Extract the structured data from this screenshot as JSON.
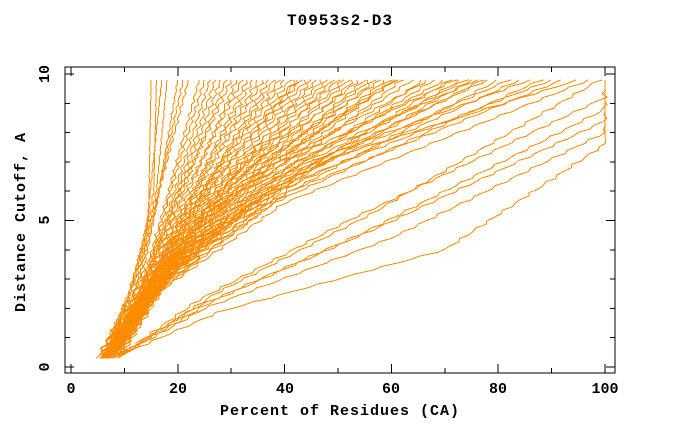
{
  "title": "T0953s2-D3",
  "chart_data": {
    "type": "line",
    "title": "T0953s2-D3",
    "xlabel": "Percent of Residues (CA)",
    "ylabel": "Distance Cutoff, A",
    "xlim": [
      0,
      100
    ],
    "ylim": [
      0,
      10
    ],
    "x_major_ticks": [
      0,
      20,
      40,
      60,
      80,
      100
    ],
    "x_minor_ticks": [
      10,
      30,
      50,
      70,
      90
    ],
    "y_major_ticks": [
      0,
      5,
      10
    ],
    "y_minor_ticks": [
      1,
      2,
      3,
      4,
      6,
      7,
      8,
      9
    ],
    "grid": false,
    "legend": "none",
    "line_color": "#ff8c00",
    "axis_color": "#000000",
    "background": "#ffffff",
    "curves_max_cutoff": 9.8,
    "series": [
      [
        [
          5.5,
          0.3
        ],
        [
          11,
          2.5
        ],
        [
          14.5,
          5
        ],
        [
          15,
          9.8
        ]
      ],
      [
        [
          6,
          0.3
        ],
        [
          12,
          3
        ],
        [
          15.5,
          6
        ],
        [
          16,
          9.8
        ]
      ],
      [
        [
          5,
          0.3
        ],
        [
          10,
          2
        ],
        [
          14,
          4.5
        ],
        [
          17,
          9.8
        ]
      ],
      [
        [
          6.5,
          0.3
        ],
        [
          13,
          3.5
        ],
        [
          16,
          6
        ],
        [
          18,
          9.8
        ]
      ],
      [
        [
          5.8,
          0.3
        ],
        [
          12.5,
          2.8
        ],
        [
          16,
          5.5
        ],
        [
          20,
          9.8
        ]
      ],
      [
        [
          6.2,
          0.3
        ],
        [
          13.5,
          3.2
        ],
        [
          17,
          6.5
        ],
        [
          21,
          9.8
        ]
      ],
      [
        [
          5.2,
          0.4
        ],
        [
          11.5,
          2.2
        ],
        [
          15,
          5
        ],
        [
          22,
          9.8
        ]
      ],
      [
        [
          6,
          0.3
        ],
        [
          13,
          2.6
        ],
        [
          18,
          5.8
        ],
        [
          24,
          9.8
        ]
      ],
      [
        [
          6.5,
          0.35
        ],
        [
          14,
          3
        ],
        [
          19,
          6.2
        ],
        [
          25,
          9.8
        ]
      ],
      [
        [
          5.6,
          0.3
        ],
        [
          12,
          2.2
        ],
        [
          18,
          5.2
        ],
        [
          26,
          9.8
        ]
      ],
      [
        [
          7,
          0.4
        ],
        [
          15,
          3.4
        ],
        [
          21,
          6.6
        ],
        [
          27,
          9.8
        ]
      ],
      [
        [
          6.1,
          0.3
        ],
        [
          13,
          2.4
        ],
        [
          19.5,
          5.6
        ],
        [
          28,
          9.8
        ]
      ],
      [
        [
          6.8,
          0.35
        ],
        [
          14.5,
          3
        ],
        [
          21,
          6
        ],
        [
          29,
          9.8
        ]
      ],
      [
        [
          5.9,
          0.3
        ],
        [
          12.5,
          2.3
        ],
        [
          19,
          5.4
        ],
        [
          30,
          9.8
        ]
      ],
      [
        [
          7.2,
          0.4
        ],
        [
          15.5,
          3.2
        ],
        [
          23,
          6.4
        ],
        [
          31,
          9.8
        ]
      ],
      [
        [
          6.3,
          0.3
        ],
        [
          13.2,
          2.5
        ],
        [
          21,
          5.8
        ],
        [
          32,
          9.8
        ]
      ],
      [
        [
          6.9,
          0.35
        ],
        [
          15,
          3
        ],
        [
          23.5,
          6.2
        ],
        [
          33,
          9.8
        ]
      ],
      [
        [
          5.7,
          0.3
        ],
        [
          12.8,
          2.2
        ],
        [
          20.5,
          5.2
        ],
        [
          34,
          9.8
        ]
      ],
      [
        [
          7.4,
          0.4
        ],
        [
          16,
          3.3
        ],
        [
          25,
          6.5
        ],
        [
          35,
          9.8
        ]
      ],
      [
        [
          6.4,
          0.3
        ],
        [
          13.8,
          2.5
        ],
        [
          22.5,
          5.7
        ],
        [
          36,
          9.8
        ]
      ],
      [
        [
          7,
          0.35
        ],
        [
          15.2,
          3
        ],
        [
          25,
          6.1
        ],
        [
          37,
          9.8
        ]
      ],
      [
        [
          5.8,
          0.3
        ],
        [
          13,
          2.3
        ],
        [
          22,
          5.3
        ],
        [
          38,
          9.8
        ]
      ],
      [
        [
          7.6,
          0.4
        ],
        [
          16.5,
          3.4
        ],
        [
          27,
          6.6
        ],
        [
          39,
          9.8
        ]
      ],
      [
        [
          6.6,
          0.3
        ],
        [
          14.2,
          2.6
        ],
        [
          24,
          5.8
        ],
        [
          40,
          9.8
        ]
      ],
      [
        [
          7.1,
          0.35
        ],
        [
          15.8,
          3.1
        ],
        [
          26.5,
          6.2
        ],
        [
          41,
          9.8
        ]
      ],
      [
        [
          6,
          0.3
        ],
        [
          13.5,
          2.4
        ],
        [
          23.5,
          5.5
        ],
        [
          42,
          9.8
        ]
      ],
      [
        [
          7.8,
          0.4
        ],
        [
          17,
          3.5
        ],
        [
          28.5,
          6.7
        ],
        [
          42.5,
          9.8
        ]
      ],
      [
        [
          6.2,
          0.3
        ],
        [
          14,
          2.5
        ],
        [
          25,
          5.6
        ],
        [
          43,
          9.8
        ]
      ],
      [
        [
          7,
          0.35
        ],
        [
          15.5,
          3
        ],
        [
          27,
          6
        ],
        [
          44,
          9.8
        ]
      ],
      [
        [
          5.9,
          0.3
        ],
        [
          13.2,
          2.2
        ],
        [
          24.5,
          5.2
        ],
        [
          45,
          9.8
        ]
      ],
      [
        [
          7.5,
          0.4
        ],
        [
          16.8,
          3.3
        ],
        [
          29,
          6.4
        ],
        [
          46,
          9.8
        ]
      ],
      [
        [
          6.5,
          0.3
        ],
        [
          14.5,
          2.6
        ],
        [
          26.5,
          5.7
        ],
        [
          47,
          9.8
        ]
      ],
      [
        [
          7.2,
          0.35
        ],
        [
          16,
          3.1
        ],
        [
          28.5,
          6.1
        ],
        [
          48,
          9.8
        ]
      ],
      [
        [
          6,
          0.3
        ],
        [
          13.8,
          2.3
        ],
        [
          25.5,
          5.3
        ],
        [
          49,
          9.8
        ]
      ],
      [
        [
          7.9,
          0.4
        ],
        [
          17.5,
          3.5
        ],
        [
          31,
          6.6
        ],
        [
          50,
          9.8
        ]
      ],
      [
        [
          6.7,
          0.3
        ],
        [
          15,
          2.7
        ],
        [
          28,
          5.8
        ],
        [
          51,
          9.8
        ]
      ],
      [
        [
          7.3,
          0.35
        ],
        [
          16.4,
          3.1
        ],
        [
          30,
          6.2
        ],
        [
          52,
          9.8
        ]
      ],
      [
        [
          6.1,
          0.3
        ],
        [
          14.2,
          2.4
        ],
        [
          27,
          5.4
        ],
        [
          53,
          9.8
        ]
      ],
      [
        [
          8,
          0.4
        ],
        [
          18,
          3.6
        ],
        [
          33,
          6.7
        ],
        [
          54,
          9.8
        ]
      ],
      [
        [
          6.8,
          0.3
        ],
        [
          15.4,
          2.7
        ],
        [
          29.5,
          5.8
        ],
        [
          55,
          9.8
        ]
      ],
      [
        [
          7.4,
          0.35
        ],
        [
          17,
          3.2
        ],
        [
          31.5,
          6.2
        ],
        [
          56,
          9.8
        ]
      ],
      [
        [
          6.2,
          0.3
        ],
        [
          14.6,
          2.4
        ],
        [
          28.5,
          5.5
        ],
        [
          57,
          9.8
        ]
      ],
      [
        [
          8.2,
          0.4
        ],
        [
          18.5,
          3.6
        ],
        [
          34.5,
          6.8
        ],
        [
          58,
          9.8
        ]
      ],
      [
        [
          6.9,
          0.3
        ],
        [
          15.8,
          2.8
        ],
        [
          31,
          5.9
        ],
        [
          59,
          9.8
        ]
      ],
      [
        [
          7.5,
          0.35
        ],
        [
          17.4,
          3.2
        ],
        [
          33,
          6.3
        ],
        [
          60,
          9.8
        ]
      ],
      [
        [
          6.3,
          0.3
        ],
        [
          15,
          2.5
        ],
        [
          30,
          5.6
        ],
        [
          60.5,
          9.8
        ]
      ],
      [
        [
          8.4,
          0.4
        ],
        [
          19,
          3.7
        ],
        [
          36,
          6.8
        ],
        [
          61,
          9.8
        ]
      ],
      [
        [
          6.4,
          0.3
        ],
        [
          15.2,
          2.5
        ],
        [
          31,
          5.5
        ],
        [
          62,
          9.8
        ]
      ],
      [
        [
          7.6,
          0.35
        ],
        [
          17.8,
          3.2
        ],
        [
          34.5,
          6.3
        ],
        [
          64,
          9.8
        ]
      ],
      [
        [
          6.6,
          0.3
        ],
        [
          15.6,
          2.6
        ],
        [
          32.5,
          5.6
        ],
        [
          66,
          9.8
        ]
      ],
      [
        [
          8.6,
          0.4
        ],
        [
          19.5,
          3.7
        ],
        [
          38,
          6.9
        ],
        [
          67,
          9.8
        ]
      ],
      [
        [
          7,
          0.3
        ],
        [
          16.2,
          2.8
        ],
        [
          34,
          5.9
        ],
        [
          68,
          9.8
        ]
      ],
      [
        [
          7.7,
          0.35
        ],
        [
          18.2,
          3.3
        ],
        [
          36.5,
          6.4
        ],
        [
          70,
          9.8
        ]
      ],
      [
        [
          6.5,
          0.3
        ],
        [
          15.4,
          2.5
        ],
        [
          33,
          5.5
        ],
        [
          71,
          9.8
        ]
      ],
      [
        [
          8.8,
          0.4
        ],
        [
          20,
          3.8
        ],
        [
          40,
          7
        ],
        [
          72,
          9.8
        ]
      ],
      [
        [
          7.1,
          0.3
        ],
        [
          16.6,
          2.8
        ],
        [
          35.5,
          5.9
        ],
        [
          73,
          9.8
        ]
      ],
      [
        [
          7.8,
          0.35
        ],
        [
          18.6,
          3.3
        ],
        [
          38,
          6.4
        ],
        [
          74,
          9.8
        ]
      ],
      [
        [
          6.7,
          0.3
        ],
        [
          15.8,
          2.6
        ],
        [
          34.5,
          5.6
        ],
        [
          75,
          9.8
        ]
      ],
      [
        [
          9,
          0.4
        ],
        [
          20.5,
          3.8
        ],
        [
          42,
          7
        ],
        [
          76,
          9.8
        ]
      ],
      [
        [
          7.2,
          0.3
        ],
        [
          17,
          2.9
        ],
        [
          37,
          6
        ],
        [
          77,
          9.8
        ]
      ],
      [
        [
          7.9,
          0.35
        ],
        [
          19,
          3.4
        ],
        [
          40,
          6.5
        ],
        [
          78,
          9.8
        ]
      ],
      [
        [
          6.8,
          0.3
        ],
        [
          16,
          2.5
        ],
        [
          36,
          5.5
        ],
        [
          80,
          9.8
        ]
      ],
      [
        [
          8,
          0.35
        ],
        [
          19.4,
          3.4
        ],
        [
          42,
          6.5
        ],
        [
          82,
          9.8
        ]
      ],
      [
        [
          7.3,
          0.3
        ],
        [
          17.4,
          2.9
        ],
        [
          39,
          6
        ],
        [
          84,
          9.8
        ]
      ],
      [
        [
          9.2,
          0.4
        ],
        [
          21,
          3.9
        ],
        [
          46,
          7.1
        ],
        [
          86,
          9.8
        ]
      ],
      [
        [
          6.9,
          0.3
        ],
        [
          16.4,
          2.6
        ],
        [
          38,
          5.6
        ],
        [
          88,
          9.8
        ]
      ],
      [
        [
          8.1,
          0.35
        ],
        [
          19.8,
          3.4
        ],
        [
          44,
          6.5
        ],
        [
          90,
          9.8
        ]
      ],
      [
        [
          7.4,
          0.3
        ],
        [
          17.8,
          2.9
        ],
        [
          41,
          6
        ],
        [
          92,
          9.8
        ]
      ],
      [
        [
          9.4,
          0.4
        ],
        [
          21.5,
          3.9
        ],
        [
          48,
          7.1
        ],
        [
          95,
          9.8
        ]
      ],
      [
        [
          7,
          0.3
        ],
        [
          16.8,
          2.6
        ],
        [
          40,
          5.6
        ],
        [
          97,
          9.8
        ]
      ],
      [
        [
          8,
          0.3
        ],
        [
          28,
          1.9
        ],
        [
          70,
          4
        ],
        [
          100,
          7.6
        ],
        [
          100,
          9.8
        ]
      ],
      [
        [
          8.5,
          0.3
        ],
        [
          25,
          2
        ],
        [
          60,
          4.4
        ],
        [
          100,
          8
        ],
        [
          100,
          9.8
        ]
      ],
      [
        [
          9,
          0.35
        ],
        [
          26,
          2.2
        ],
        [
          58,
          4.8
        ],
        [
          100,
          8.4
        ],
        [
          100,
          9.8
        ]
      ],
      [
        [
          8.2,
          0.3
        ],
        [
          23,
          2
        ],
        [
          55,
          4.6
        ],
        [
          100,
          8.8
        ],
        [
          100,
          9.8
        ]
      ],
      [
        [
          8.8,
          0.35
        ],
        [
          24,
          2.3
        ],
        [
          52,
          5
        ],
        [
          100,
          9.2
        ],
        [
          100,
          9.8
        ]
      ],
      [
        [
          9.5,
          0.4
        ],
        [
          27,
          2.5
        ],
        [
          56,
          5.2
        ],
        [
          99,
          9.8
        ]
      ]
    ]
  }
}
